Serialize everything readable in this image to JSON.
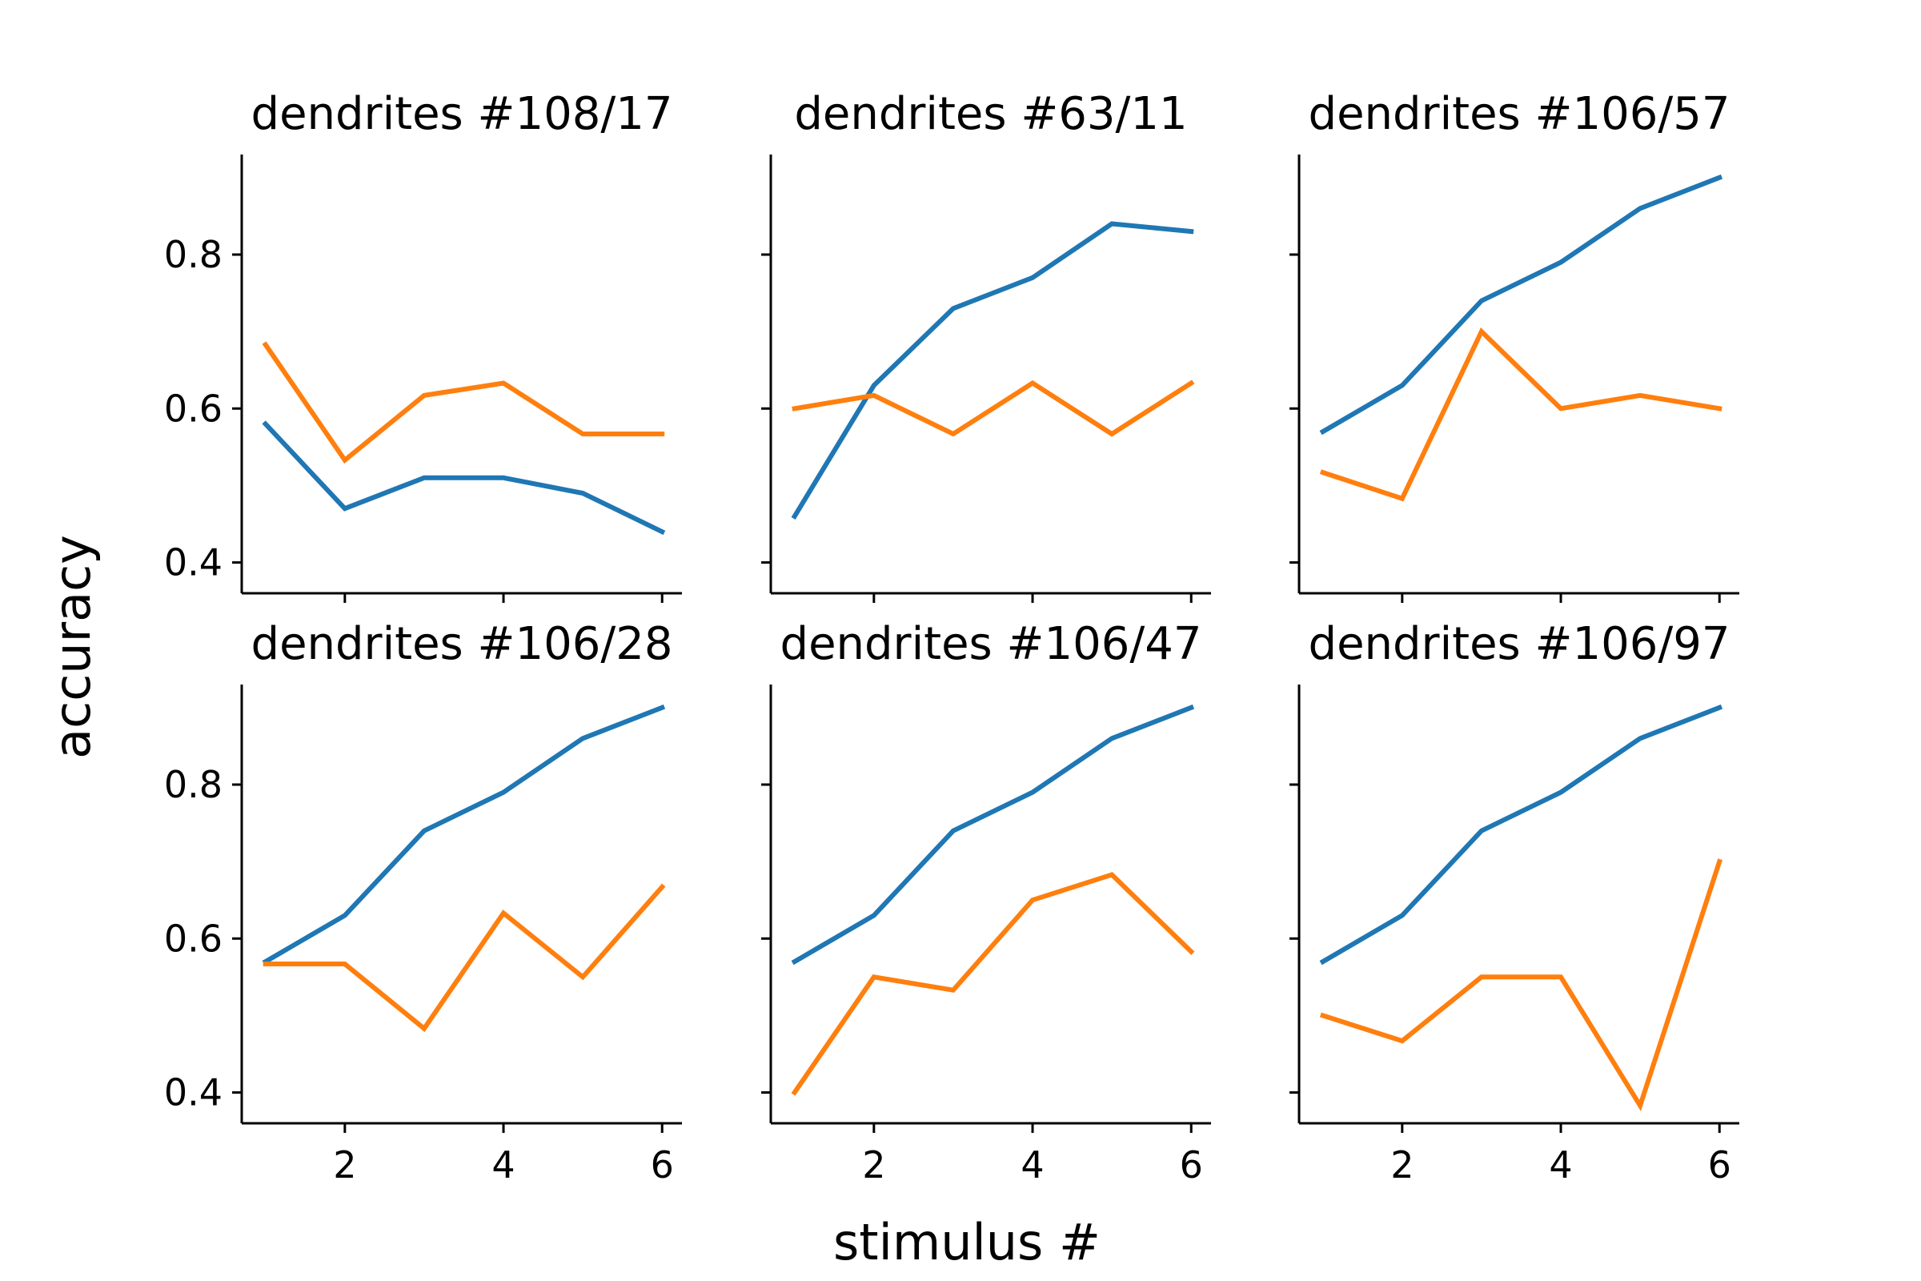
{
  "figure": {
    "xlabel": "stimulus #",
    "ylabel": "accuracy"
  },
  "colors": {
    "series_blue": "#1f77b4",
    "series_orange": "#ff7f0e",
    "axis": "#000000"
  },
  "chart_data": [
    {
      "type": "line",
      "title": "dendrites #108/17",
      "x": [
        1,
        2,
        3,
        4,
        5,
        6
      ],
      "xticks": [
        "2",
        "4",
        "6"
      ],
      "yticks": [
        "0.4",
        "0.6",
        "0.8"
      ],
      "xlim": [
        0.7,
        6.25
      ],
      "ylim": [
        0.36,
        0.93
      ],
      "grid": false,
      "series": [
        {
          "color": "#1f77b4",
          "values": [
            0.58,
            0.47,
            0.51,
            0.51,
            0.49,
            0.44
          ]
        },
        {
          "color": "#ff7f0e",
          "values": [
            0.683,
            0.533,
            0.617,
            0.633,
            0.567,
            0.567
          ]
        }
      ]
    },
    {
      "type": "line",
      "title": "dendrites #63/11",
      "x": [
        1,
        2,
        3,
        4,
        5,
        6
      ],
      "xticks": [
        "2",
        "4",
        "6"
      ],
      "yticks": [
        "0.4",
        "0.6",
        "0.8"
      ],
      "xlim": [
        0.7,
        6.25
      ],
      "ylim": [
        0.36,
        0.93
      ],
      "grid": false,
      "series": [
        {
          "color": "#1f77b4",
          "values": [
            0.46,
            0.63,
            0.73,
            0.77,
            0.84,
            0.83
          ]
        },
        {
          "color": "#ff7f0e",
          "values": [
            0.6,
            0.617,
            0.567,
            0.633,
            0.567,
            0.633
          ]
        }
      ]
    },
    {
      "type": "line",
      "title": "dendrites #106/57",
      "x": [
        1,
        2,
        3,
        4,
        5,
        6
      ],
      "xticks": [
        "2",
        "4",
        "6"
      ],
      "yticks": [
        "0.4",
        "0.6",
        "0.8"
      ],
      "xlim": [
        0.7,
        6.25
      ],
      "ylim": [
        0.36,
        0.93
      ],
      "grid": false,
      "series": [
        {
          "color": "#1f77b4",
          "values": [
            0.57,
            0.63,
            0.74,
            0.79,
            0.86,
            0.9
          ]
        },
        {
          "color": "#ff7f0e",
          "values": [
            0.517,
            0.483,
            0.7,
            0.6,
            0.617,
            0.6
          ]
        }
      ]
    },
    {
      "type": "line",
      "title": "dendrites #106/28",
      "x": [
        1,
        2,
        3,
        4,
        5,
        6
      ],
      "xticks": [
        "2",
        "4",
        "6"
      ],
      "yticks": [
        "0.4",
        "0.6",
        "0.8"
      ],
      "xlim": [
        0.7,
        6.25
      ],
      "ylim": [
        0.36,
        0.93
      ],
      "grid": false,
      "series": [
        {
          "color": "#1f77b4",
          "values": [
            0.57,
            0.63,
            0.74,
            0.79,
            0.86,
            0.9
          ]
        },
        {
          "color": "#ff7f0e",
          "values": [
            0.567,
            0.567,
            0.483,
            0.633,
            0.55,
            0.667
          ]
        }
      ]
    },
    {
      "type": "line",
      "title": "dendrites #106/47",
      "x": [
        1,
        2,
        3,
        4,
        5,
        6
      ],
      "xticks": [
        "2",
        "4",
        "6"
      ],
      "yticks": [
        "0.4",
        "0.6",
        "0.8"
      ],
      "xlim": [
        0.7,
        6.25
      ],
      "ylim": [
        0.36,
        0.93
      ],
      "grid": false,
      "series": [
        {
          "color": "#1f77b4",
          "values": [
            0.57,
            0.63,
            0.74,
            0.79,
            0.86,
            0.9
          ]
        },
        {
          "color": "#ff7f0e",
          "values": [
            0.4,
            0.55,
            0.533,
            0.65,
            0.683,
            0.583
          ]
        }
      ]
    },
    {
      "type": "line",
      "title": "dendrites #106/97",
      "x": [
        1,
        2,
        3,
        4,
        5,
        6
      ],
      "xticks": [
        "2",
        "4",
        "6"
      ],
      "yticks": [
        "0.4",
        "0.6",
        "0.8"
      ],
      "xlim": [
        0.7,
        6.25
      ],
      "ylim": [
        0.36,
        0.93
      ],
      "grid": false,
      "series": [
        {
          "color": "#1f77b4",
          "values": [
            0.57,
            0.63,
            0.74,
            0.79,
            0.86,
            0.9
          ]
        },
        {
          "color": "#ff7f0e",
          "values": [
            0.5,
            0.467,
            0.55,
            0.55,
            0.383,
            0.7
          ]
        }
      ]
    }
  ]
}
